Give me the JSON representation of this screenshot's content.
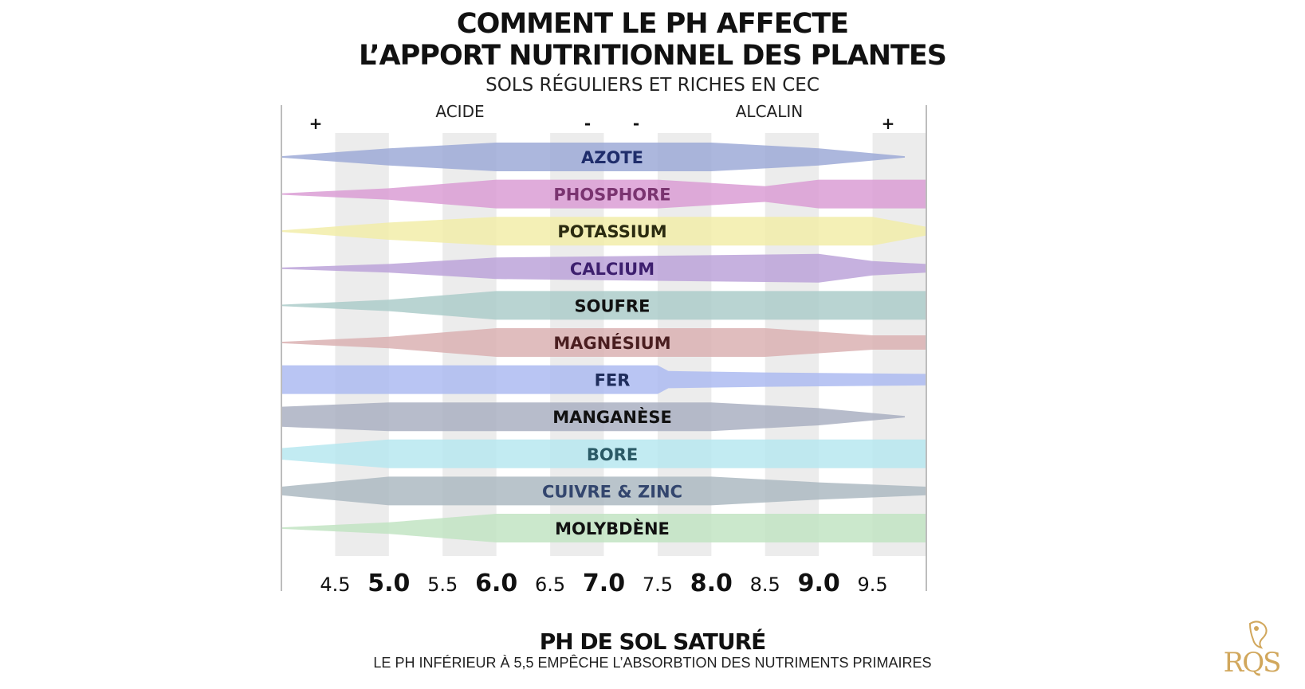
{
  "title_line1": "COMMENT LE PH AFFECTE",
  "title_line2": "L’APPORT NUTRITIONNEL DES PLANTES",
  "subtitle": "SOLS RÉGULIERS ET RICHES EN CEC",
  "labels": {
    "acid": "ACIDE",
    "alkaline": "ALCALIN",
    "plus_left": "+",
    "minus_left": "-",
    "minus_right": "-",
    "plus_right": "+"
  },
  "xlabel": "PH DE SOL SATURÉ",
  "note": "LE PH INFÉRIEUR À 5,5 EMPÊCHE L’ABSORBTION DES NUTRIMENTS PRIMAIRES",
  "logo_text": "RQS",
  "chart_data": {
    "type": "area",
    "x_ticks": [
      "4.5",
      "5.0",
      "5.5",
      "6.0",
      "6.5",
      "7.0",
      "7.5",
      "8.0",
      "8.5",
      "9.0",
      "9.5"
    ],
    "x_major": [
      "5.0",
      "6.0",
      "7.0",
      "8.0",
      "9.0"
    ],
    "xlim": [
      4.0,
      10.0
    ],
    "series": [
      {
        "name": "AZOTE",
        "color": "#9aa7d6",
        "text_color": "#1f2d6b",
        "ph": [
          4.0,
          5.0,
          6.0,
          8.0,
          9.0,
          9.8
        ],
        "availability": [
          0.05,
          0.6,
          1.0,
          1.0,
          0.6,
          0.05
        ]
      },
      {
        "name": "PHOSPHORE",
        "color": "#d99ad3",
        "text_color": "#7a3470",
        "ph": [
          4.0,
          5.0,
          6.0,
          7.5,
          8.5,
          9.0,
          10.0
        ],
        "availability": [
          0.05,
          0.4,
          1.0,
          1.0,
          0.55,
          1.0,
          1.0
        ]
      },
      {
        "name": "POTASSIUM",
        "color": "#f2eda6",
        "text_color": "#2b2b10",
        "ph": [
          4.0,
          5.0,
          6.0,
          9.5,
          10.0
        ],
        "availability": [
          0.05,
          0.6,
          1.0,
          1.0,
          0.3
        ]
      },
      {
        "name": "CALCIUM",
        "color": "#b9a0d8",
        "text_color": "#3d1f6e",
        "ph": [
          4.0,
          5.0,
          6.0,
          9.0,
          9.5,
          10.0
        ],
        "availability": [
          0.05,
          0.3,
          0.75,
          1.0,
          0.5,
          0.3
        ]
      },
      {
        "name": "SOUFRE",
        "color": "#a9cbc8",
        "text_color": "#111111",
        "ph": [
          4.0,
          5.0,
          6.0,
          10.0
        ],
        "availability": [
          0.05,
          0.4,
          1.0,
          1.0
        ]
      },
      {
        "name": "MAGNÉSIUM",
        "color": "#d9aeb0",
        "text_color": "#4a1e20",
        "ph": [
          4.0,
          5.0,
          6.0,
          8.5,
          9.5,
          10.0
        ],
        "availability": [
          0.05,
          0.4,
          1.0,
          1.0,
          0.5,
          0.5
        ]
      },
      {
        "name": "FER",
        "color": "#a9b8f0",
        "text_color": "#1f2d5c",
        "ph": [
          4.0,
          7.5,
          7.6,
          8.5,
          10.0
        ],
        "availability": [
          1.0,
          1.0,
          0.6,
          0.5,
          0.4
        ]
      },
      {
        "name": "MANGANÈSE",
        "color": "#a7adbf",
        "text_color": "#111111",
        "ph": [
          4.0,
          5.0,
          6.0,
          8.0,
          9.0,
          9.8
        ],
        "availability": [
          0.7,
          1.0,
          1.0,
          1.0,
          0.6,
          0.05
        ]
      },
      {
        "name": "BORE",
        "color": "#b4e6ef",
        "text_color": "#2a5a66",
        "ph": [
          4.0,
          5.0,
          6.0,
          8.5,
          8.7,
          10.0
        ],
        "availability": [
          0.4,
          1.0,
          1.0,
          1.0,
          1.0,
          1.0
        ]
      },
      {
        "name": "CUIVRE & ZINC",
        "color": "#aab7bf",
        "text_color": "#33466e",
        "ph": [
          4.0,
          5.0,
          6.0,
          8.0,
          9.0,
          10.0
        ],
        "availability": [
          0.3,
          1.0,
          1.0,
          1.0,
          0.6,
          0.3
        ]
      },
      {
        "name": "MOLYBDÈNE",
        "color": "#bfe3c1",
        "text_color": "#111111",
        "ph": [
          4.0,
          5.0,
          6.0,
          8.5,
          8.7,
          10.0
        ],
        "availability": [
          0.05,
          0.4,
          1.0,
          1.0,
          1.0,
          1.0
        ]
      }
    ]
  }
}
